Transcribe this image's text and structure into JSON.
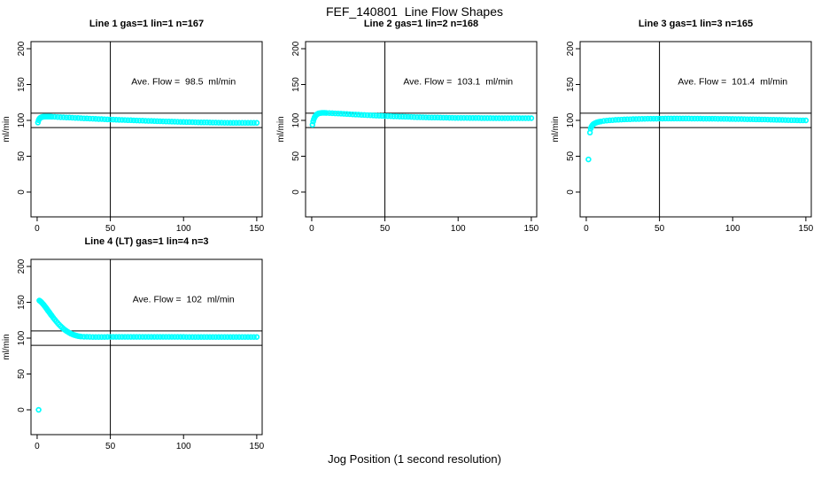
{
  "figure": {
    "title": "FEF_140801  Line Flow Shapes",
    "xlabel": "Jog Position (1 second resolution)",
    "background_color": "#ffffff",
    "point_color": "#00ffff",
    "axis_color": "#000000"
  },
  "chart_data": [
    {
      "type": "scatter",
      "title": "Line 1 gas=1 lin=1 n=167",
      "ylabel": "ml/min",
      "annotation": "Ave. Flow =  98.5  ml/min",
      "annotation_pos": {
        "x": 100,
        "y": 150
      },
      "xlim": [
        -4.2,
        153.7
      ],
      "ylim": [
        -34.6,
        209.9
      ],
      "xticks": [
        0,
        50,
        100,
        150
      ],
      "yticks": [
        0,
        50,
        100,
        150,
        200
      ],
      "ref_lines": {
        "horizontal": [
          90,
          110
        ],
        "vertical": [
          50
        ]
      },
      "grid": false,
      "x": [
        0.5,
        1,
        1.5,
        2,
        2.5,
        3,
        3.5,
        4,
        4.5,
        5,
        6,
        7,
        8,
        9,
        10,
        12,
        14,
        16,
        18,
        20,
        22,
        24,
        26,
        28,
        30,
        32,
        34,
        36,
        38,
        40,
        42,
        44,
        46,
        48,
        50,
        52,
        54,
        56,
        58,
        60,
        62,
        64,
        66,
        68,
        70,
        72,
        74,
        76,
        78,
        80,
        82,
        84,
        86,
        88,
        90,
        92,
        94,
        96,
        98,
        100,
        102,
        104,
        106,
        108,
        110,
        112,
        114,
        116,
        118,
        120,
        122,
        124,
        126,
        128,
        130,
        132,
        134,
        136,
        138,
        140,
        142,
        144,
        146,
        148,
        150
      ],
      "y": [
        97,
        100.3,
        102.2,
        103.3,
        104,
        104.5,
        104.8,
        105,
        105.1,
        105.2,
        105.3,
        105.3,
        105.2,
        105.2,
        105.1,
        104.9,
        104.7,
        104.5,
        104.3,
        104.1,
        103.9,
        103.7,
        103.5,
        103.3,
        103.1,
        102.9,
        102.7,
        102.5,
        102.3,
        102.1,
        101.9,
        101.8,
        101.6,
        101.4,
        101.2,
        101.1,
        100.9,
        100.8,
        100.6,
        100.5,
        100.3,
        100.2,
        100,
        99.9,
        99.7,
        99.6,
        99.4,
        99.3,
        99.2,
        99,
        98.9,
        98.8,
        98.6,
        98.5,
        98.4,
        98.3,
        98.1,
        98,
        97.9,
        97.8,
        97.7,
        97.6,
        97.5,
        97.4,
        97.3,
        97.2,
        97.1,
        97.1,
        97,
        96.9,
        96.9,
        96.8,
        96.8,
        96.7,
        96.7,
        96.6,
        96.6,
        96.6,
        96.5,
        96.5,
        96.5,
        96.5,
        96.5,
        96.5,
        96.5
      ]
    },
    {
      "type": "scatter",
      "title": "Line 2 gas=1 lin=2 n=168",
      "ylabel": "ml/min",
      "annotation": "Ave. Flow =  103.1  ml/min",
      "annotation_pos": {
        "x": 100,
        "y": 150
      },
      "xlim": [
        -4.2,
        153.7
      ],
      "ylim": [
        -34.6,
        209.9
      ],
      "xticks": [
        0,
        50,
        100,
        150
      ],
      "yticks": [
        0,
        50,
        100,
        150,
        200
      ],
      "ref_lines": {
        "horizontal": [
          90,
          110
        ],
        "vertical": [
          50
        ]
      },
      "grid": false,
      "x": [
        0.5,
        1,
        1.5,
        2,
        2.5,
        3,
        3.5,
        4,
        4.5,
        5,
        6,
        7,
        8,
        9,
        10,
        12,
        14,
        16,
        18,
        20,
        22,
        24,
        26,
        28,
        30,
        32,
        34,
        36,
        38,
        40,
        42,
        44,
        46,
        48,
        50,
        52,
        54,
        56,
        58,
        60,
        62,
        64,
        66,
        68,
        70,
        72,
        74,
        76,
        78,
        80,
        82,
        84,
        86,
        88,
        90,
        92,
        94,
        96,
        98,
        100,
        102,
        104,
        106,
        108,
        110,
        112,
        114,
        116,
        118,
        120,
        122,
        124,
        126,
        128,
        130,
        132,
        134,
        136,
        138,
        140,
        142,
        144,
        146,
        148,
        150
      ],
      "y": [
        94,
        98.5,
        101.8,
        104.2,
        106,
        107.3,
        108.3,
        109,
        109.5,
        109.9,
        110.3,
        110.5,
        110.5,
        110.5,
        110.4,
        110.2,
        110,
        109.8,
        109.6,
        109.4,
        109.1,
        108.9,
        108.7,
        108.4,
        108.2,
        108,
        107.7,
        107.5,
        107.3,
        107.1,
        106.9,
        106.7,
        106.5,
        106.3,
        106.1,
        105.9,
        105.8,
        105.6,
        105.5,
        105.3,
        105.2,
        105,
        104.9,
        104.8,
        104.6,
        104.5,
        104.4,
        104.3,
        104.2,
        104.1,
        104,
        103.9,
        103.9,
        103.8,
        103.7,
        103.7,
        103.6,
        103.6,
        103.5,
        103.5,
        103.4,
        103.4,
        103.4,
        103.3,
        103.3,
        103.3,
        103.3,
        103.2,
        103.2,
        103.2,
        103.2,
        103.1,
        103.1,
        103.1,
        103.1,
        103.1,
        103.1,
        103.1,
        103.1,
        103.1,
        103.1,
        103.1,
        103.1,
        103.1,
        103.1
      ]
    },
    {
      "type": "scatter",
      "title": "Line 3 gas=1 lin=3 n=165",
      "ylabel": "ml/min",
      "annotation": "Ave. Flow =  101.4  ml/min",
      "annotation_pos": {
        "x": 100,
        "y": 150
      },
      "xlim": [
        -4.2,
        153.7
      ],
      "ylim": [
        -34.6,
        209.9
      ],
      "xticks": [
        0,
        50,
        100,
        150
      ],
      "yticks": [
        0,
        50,
        100,
        150,
        200
      ],
      "ref_lines": {
        "horizontal": [
          90,
          110
        ],
        "vertical": [
          50
        ]
      },
      "grid": false,
      "x": [
        1.5,
        2.5,
        3,
        3.5,
        4,
        4.5,
        5,
        6,
        7,
        8,
        9,
        10,
        12,
        14,
        16,
        18,
        20,
        22,
        24,
        26,
        28,
        30,
        32,
        34,
        36,
        38,
        40,
        42,
        44,
        46,
        48,
        50,
        52,
        54,
        56,
        58,
        60,
        62,
        64,
        66,
        68,
        70,
        72,
        74,
        76,
        78,
        80,
        82,
        84,
        86,
        88,
        90,
        92,
        94,
        96,
        98,
        100,
        102,
        104,
        106,
        108,
        110,
        112,
        114,
        116,
        118,
        120,
        122,
        124,
        126,
        128,
        130,
        132,
        134,
        136,
        138,
        140,
        142,
        144,
        146,
        148,
        150
      ],
      "y": [
        45.5,
        83,
        88.5,
        91,
        92.8,
        94,
        94.9,
        96.2,
        97,
        97.6,
        98.1,
        98.5,
        99.2,
        99.7,
        100.1,
        100.4,
        100.7,
        100.9,
        101.1,
        101.3,
        101.5,
        101.6,
        101.8,
        101.9,
        102,
        102.1,
        102.2,
        102.3,
        102.3,
        102.4,
        102.4,
        102.5,
        102.5,
        102.6,
        102.6,
        102.6,
        102.6,
        102.6,
        102.6,
        102.6,
        102.6,
        102.6,
        102.5,
        102.5,
        102.5,
        102.5,
        102.4,
        102.4,
        102.4,
        102.3,
        102.3,
        102.2,
        102.2,
        102.1,
        102.1,
        102,
        102,
        101.9,
        101.8,
        101.8,
        101.7,
        101.6,
        101.6,
        101.5,
        101.4,
        101.3,
        101.2,
        101.2,
        101.1,
        101,
        100.9,
        100.8,
        100.7,
        100.6,
        100.5,
        100.4,
        100.3,
        100.2,
        100.1,
        100,
        100,
        100
      ]
    },
    {
      "type": "scatter",
      "title": "Line 4 (LT) gas=1 lin=4 n=3",
      "ylabel": "ml/min",
      "annotation": "Ave. Flow =  102  ml/min",
      "annotation_pos": {
        "x": 100,
        "y": 150
      },
      "xlim": [
        -4.2,
        153.7
      ],
      "ylim": [
        -34.6,
        209.9
      ],
      "xticks": [
        0,
        50,
        100,
        150
      ],
      "yticks": [
        0,
        50,
        100,
        150,
        200
      ],
      "ref_lines": {
        "horizontal": [
          90,
          110
        ],
        "vertical": [
          50
        ]
      },
      "grid": false,
      "x": [
        1,
        1.5,
        2,
        2.5,
        3,
        3.5,
        4,
        4.5,
        5,
        5.5,
        6,
        6.5,
        7,
        7.5,
        8,
        8.5,
        9,
        9.5,
        10,
        11,
        12,
        13,
        14,
        15,
        16,
        17,
        18,
        19,
        20,
        21,
        22,
        23,
        24,
        25,
        26,
        27,
        28,
        29,
        30,
        32,
        34,
        36,
        38,
        40,
        42,
        44,
        46,
        48,
        50,
        52,
        54,
        56,
        58,
        60,
        62,
        64,
        66,
        68,
        70,
        72,
        74,
        76,
        78,
        80,
        82,
        84,
        86,
        88,
        90,
        92,
        94,
        96,
        98,
        100,
        102,
        104,
        106,
        108,
        110,
        112,
        114,
        116,
        118,
        120,
        122,
        124,
        126,
        128,
        130,
        132,
        134,
        136,
        138,
        140,
        142,
        144,
        146,
        148,
        150
      ],
      "y": [
        0,
        152.5,
        151.8,
        150.9,
        149.9,
        148.8,
        147.6,
        146.4,
        145.1,
        143.8,
        142.4,
        141,
        139.6,
        138.2,
        136.8,
        135.4,
        134,
        132.6,
        131.2,
        128.5,
        125.9,
        123.4,
        121.1,
        118.9,
        116.8,
        114.9,
        113.1,
        111.5,
        110,
        108.6,
        107.4,
        106.3,
        105.4,
        104.6,
        103.9,
        103.3,
        102.9,
        102.5,
        102.2,
        101.9,
        101.8,
        101.7,
        101.6,
        101.6,
        101.6,
        101.6,
        101.6,
        101.7,
        101.7,
        101.7,
        101.7,
        101.7,
        101.7,
        101.7,
        101.7,
        101.7,
        101.7,
        101.7,
        101.7,
        101.7,
        101.7,
        101.7,
        101.7,
        101.7,
        101.7,
        101.7,
        101.7,
        101.7,
        101.7,
        101.7,
        101.7,
        101.7,
        101.7,
        101.7,
        101.6,
        101.6,
        101.6,
        101.6,
        101.6,
        101.6,
        101.6,
        101.6,
        101.6,
        101.6,
        101.6,
        101.6,
        101.6,
        101.6,
        101.6,
        101.6,
        101.6,
        101.6,
        101.6,
        101.6,
        101.6,
        101.6,
        101.6,
        101.6,
        101.6
      ]
    }
  ]
}
